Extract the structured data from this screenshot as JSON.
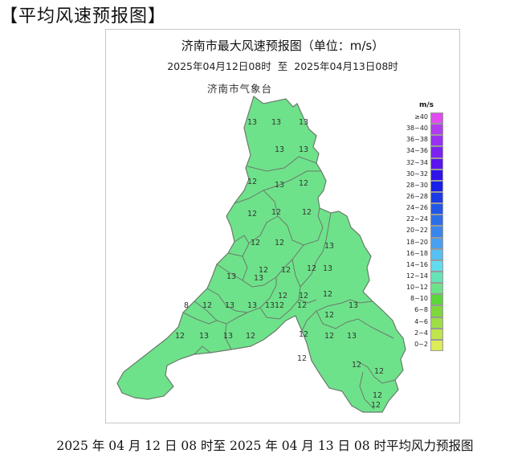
{
  "heading": "【平均风速预报图】",
  "map": {
    "title": "济南市最大风速预报图（单位：m/s）",
    "subtitle_from": "2025年04月12日08时",
    "subtitle_sep": "至",
    "subtitle_to": "2025年04月13日08时",
    "issuer": "济南市气象台",
    "region_fill": "#6ee28a",
    "district_line": "#6a7a6c",
    "values": [
      "13",
      "13",
      "13",
      "13",
      "13",
      "12",
      "13",
      "12",
      "12",
      "12",
      "12",
      "12",
      "12",
      "12",
      "12",
      "12",
      "13",
      "13",
      "12",
      "12",
      "12",
      "13",
      "13",
      "13",
      "8",
      "12",
      "13",
      "13",
      "12",
      "12",
      "12",
      "13",
      "12",
      "13",
      "13",
      "12",
      "12",
      "12",
      "13",
      "12",
      "12",
      "12",
      "12",
      "12"
    ]
  },
  "legend": {
    "unit": "m/s",
    "items": [
      {
        "label": "≥40",
        "color": "#e04cf0"
      },
      {
        "label": "38~40",
        "color": "#b23cf0"
      },
      {
        "label": "36~38",
        "color": "#9a30f2"
      },
      {
        "label": "34~36",
        "color": "#7a22f0"
      },
      {
        "label": "32~34",
        "color": "#5a14ee"
      },
      {
        "label": "30~32",
        "color": "#2f14ea"
      },
      {
        "label": "28~30",
        "color": "#1820e8"
      },
      {
        "label": "26~28",
        "color": "#1c3ae6"
      },
      {
        "label": "24~26",
        "color": "#2256e6"
      },
      {
        "label": "22~24",
        "color": "#2c6ee8"
      },
      {
        "label": "20~22",
        "color": "#3a86ec"
      },
      {
        "label": "18~20",
        "color": "#4aa0f0"
      },
      {
        "label": "16~18",
        "color": "#58c0f2"
      },
      {
        "label": "14~16",
        "color": "#62dcec"
      },
      {
        "label": "12~14",
        "color": "#66e4b8"
      },
      {
        "label": "10~12",
        "color": "#6ee28a"
      },
      {
        "label": "8~10",
        "color": "#5cd63c"
      },
      {
        "label": "6~8",
        "color": "#7ed83c"
      },
      {
        "label": "4~6",
        "color": "#9ede44"
      },
      {
        "label": "2~4",
        "color": "#bfe44c"
      },
      {
        "label": "0~2",
        "color": "#dcec58"
      }
    ]
  },
  "caption": "2025 年 04 月 12 日 08 时至 2025 年 04 月 13 日 08 时平均风力预报图"
}
